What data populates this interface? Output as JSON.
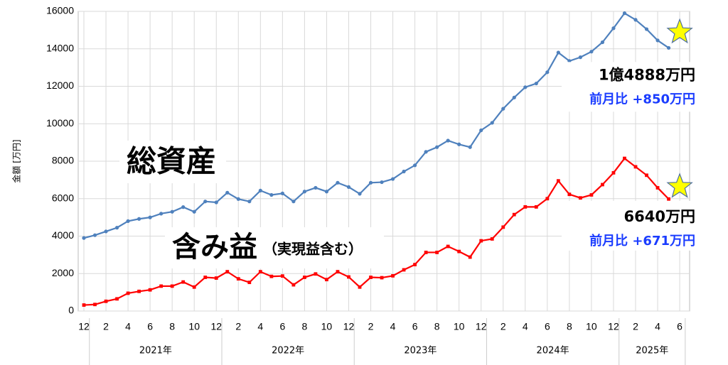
{
  "chart_data": {
    "type": "line",
    "y_label": "金額 [万円]",
    "ylim": [
      0,
      16000
    ],
    "yticks": [
      0,
      2000,
      4000,
      6000,
      8000,
      10000,
      12000,
      14000,
      16000
    ],
    "grid": true,
    "categories": [
      "12",
      null,
      "2",
      null,
      "4",
      null,
      "6",
      null,
      "8",
      null,
      "10",
      null,
      "12",
      null,
      "2",
      null,
      "4",
      null,
      "6",
      null,
      "8",
      null,
      "10",
      null,
      "12",
      null,
      "2",
      null,
      "4",
      null,
      "6",
      null,
      "8",
      null,
      "10",
      null,
      "12",
      null,
      "2",
      null,
      "4",
      null,
      "6",
      null,
      "8",
      null,
      "10",
      null,
      "12",
      null,
      "2",
      null,
      "4",
      null,
      "6"
    ],
    "years": [
      "2021年",
      "2022年",
      "2023年",
      "2024年",
      "2025年"
    ],
    "series": [
      {
        "name": "総資産",
        "color": "#4f81bd",
        "values": [
          3900,
          4050,
          4250,
          4450,
          4800,
          4920,
          5000,
          5200,
          5300,
          5550,
          5300,
          5850,
          5800,
          6320,
          5980,
          5850,
          6430,
          6200,
          6280,
          5850,
          6380,
          6580,
          6380,
          6850,
          6620,
          6260,
          6850,
          6880,
          7050,
          7450,
          7780,
          8500,
          8750,
          9100,
          8900,
          8750,
          9650,
          10050,
          10800,
          11400,
          11950,
          12150,
          12750,
          13800,
          13350,
          13550,
          13850,
          14350,
          15100,
          15900,
          15550,
          15050,
          14450,
          14050,
          null
        ],
        "latest": 14888,
        "latest_label": "1億4888万円",
        "change": 850,
        "change_label": "前月比 +850万円"
      },
      {
        "name": "含み益",
        "note": "（実現益含む）",
        "color": "#ff0000",
        "values": [
          320,
          350,
          520,
          650,
          950,
          1050,
          1130,
          1330,
          1330,
          1550,
          1280,
          1800,
          1760,
          2100,
          1720,
          1530,
          2100,
          1850,
          1870,
          1400,
          1800,
          1980,
          1680,
          2100,
          1820,
          1280,
          1800,
          1780,
          1880,
          2200,
          2480,
          3130,
          3130,
          3450,
          3180,
          2880,
          3750,
          3850,
          4480,
          5150,
          5560,
          5560,
          6000,
          6950,
          6230,
          6040,
          6200,
          6750,
          7380,
          8150,
          7700,
          7250,
          6580,
          5980,
          null
        ],
        "latest": 6640,
        "latest_label": "6640万円",
        "change": 671,
        "change_label": "前月比 +671万円"
      }
    ]
  }
}
